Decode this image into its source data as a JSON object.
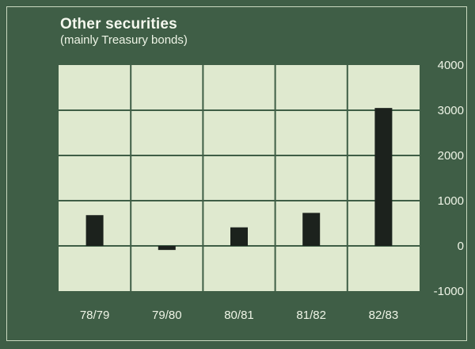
{
  "chart_data": {
    "type": "bar",
    "title": "Other securities",
    "subtitle": "(mainly Treasury bonds)",
    "categories": [
      "78/79",
      "79/80",
      "80/81",
      "81/82",
      "82/83"
    ],
    "values": [
      680,
      -90,
      410,
      730,
      3050
    ],
    "ylim": [
      -1000,
      4000
    ],
    "yticks": [
      4000,
      3000,
      2000,
      1000,
      0,
      -1000
    ],
    "ytick_labels": [
      "4000",
      "3000",
      "2000",
      "1000",
      "0",
      "-1000"
    ],
    "xlabel": "",
    "ylabel": "",
    "grid": true,
    "colors": {
      "background": "#3f5e46",
      "plot_area": "#dfe9cf",
      "grid": "#3f5e46",
      "bar": "#1c221d",
      "text": "#eef4e6"
    }
  }
}
